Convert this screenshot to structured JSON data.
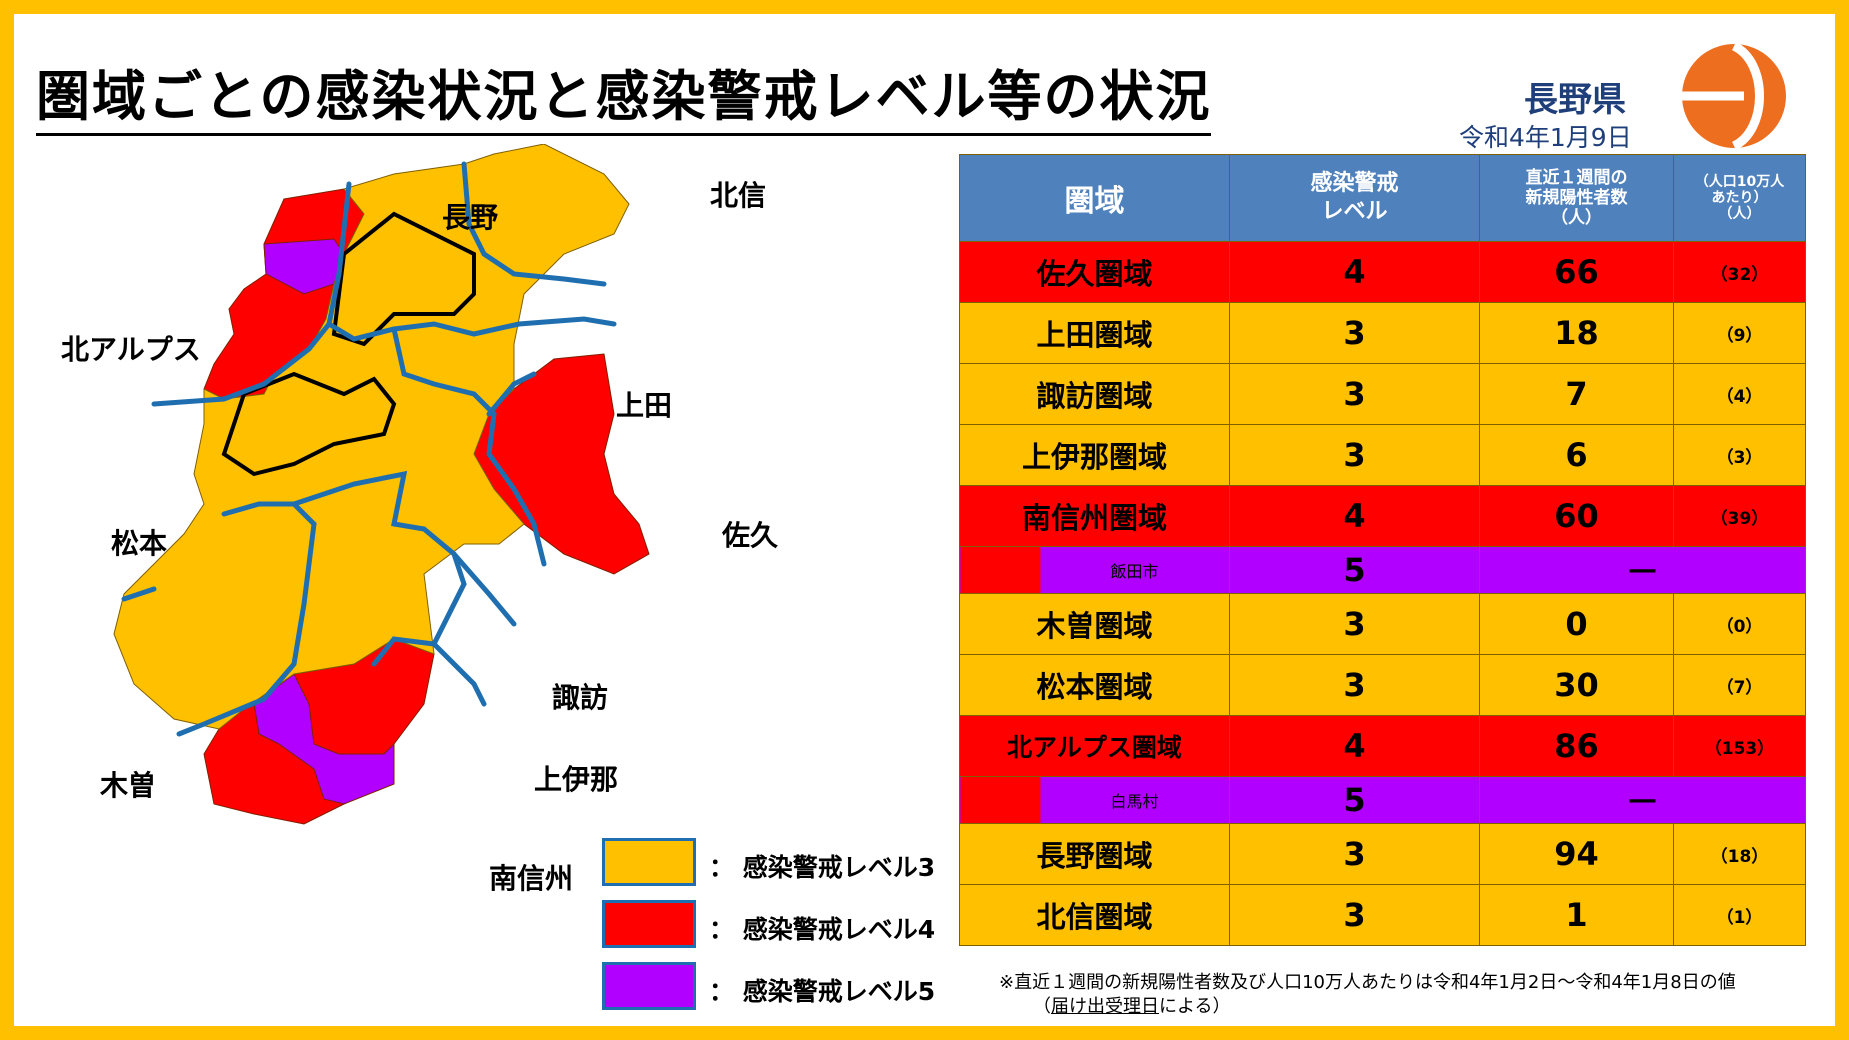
{
  "title": "圏域ごとの感染状況と感染警戒レベル等の状況",
  "prefecture": "長野県",
  "date": "令和4年1月9日",
  "colors": {
    "level3": "#ffc000",
    "level4": "#ff0000",
    "level5": "#b100ff",
    "header": "#4f81bd",
    "border_line": "#1f6fb0"
  },
  "map": {
    "labels": {
      "nagano": "長野",
      "hokushin": "北信",
      "north_alps": "北アルプス",
      "ueda": "上田",
      "matsumoto": "松本",
      "saku": "佐久",
      "suwa": "諏訪",
      "kiso": "木曽",
      "kamiina": "上伊那",
      "minami_shinshu": "南信州"
    }
  },
  "legend": [
    {
      "label": "：  感染警戒レベル3",
      "color": "#ffc000"
    },
    {
      "label": "：  感染警戒レベル4",
      "color": "#ff0000"
    },
    {
      "label": "：  感染警戒レベル5",
      "color": "#b100ff"
    }
  ],
  "table": {
    "headers": {
      "area": "圏域",
      "level_line1": "感染警戒",
      "level_line2": "レベル",
      "cases_line1": "直近１週間の",
      "cases_line2": "新規陽性者数",
      "cases_line3": "（人）",
      "per_line1": "（人口10万人",
      "per_line2": "あたり）",
      "per_line3": "（人）"
    },
    "rows": [
      {
        "name": "佐久圏域",
        "level": "4",
        "cases": "66",
        "per100k": "（32）"
      },
      {
        "name": "上田圏域",
        "level": "3",
        "cases": "18",
        "per100k": "（9）"
      },
      {
        "name": "諏訪圏域",
        "level": "3",
        "cases": "7",
        "per100k": "（4）"
      },
      {
        "name": "上伊那圏域",
        "level": "3",
        "cases": "6",
        "per100k": "（3）"
      },
      {
        "name": "南信州圏域",
        "level": "4",
        "cases": "60",
        "per100k": "（39）"
      },
      {
        "name": "飯田市",
        "level": "5",
        "dash": "―"
      },
      {
        "name": "木曽圏域",
        "level": "3",
        "cases": "0",
        "per100k": "（0）"
      },
      {
        "name": "松本圏域",
        "level": "3",
        "cases": "30",
        "per100k": "（7）"
      },
      {
        "name": "北アルプス圏域",
        "level": "4",
        "cases": "86",
        "per100k": "（153）"
      },
      {
        "name": "白馬村",
        "level": "5",
        "dash": "―"
      },
      {
        "name": "長野圏域",
        "level": "3",
        "cases": "94",
        "per100k": "（18）"
      },
      {
        "name": "北信圏域",
        "level": "3",
        "cases": "1",
        "per100k": "（1）"
      }
    ]
  },
  "note": {
    "line1": "※直近１週間の新規陽性者数及び人口10万人あたりは令和4年1月2日～令和4年1月8日の値",
    "line2_prefix": "（",
    "line2_underlined": "届け出受理日",
    "line2_suffix": "による）"
  }
}
